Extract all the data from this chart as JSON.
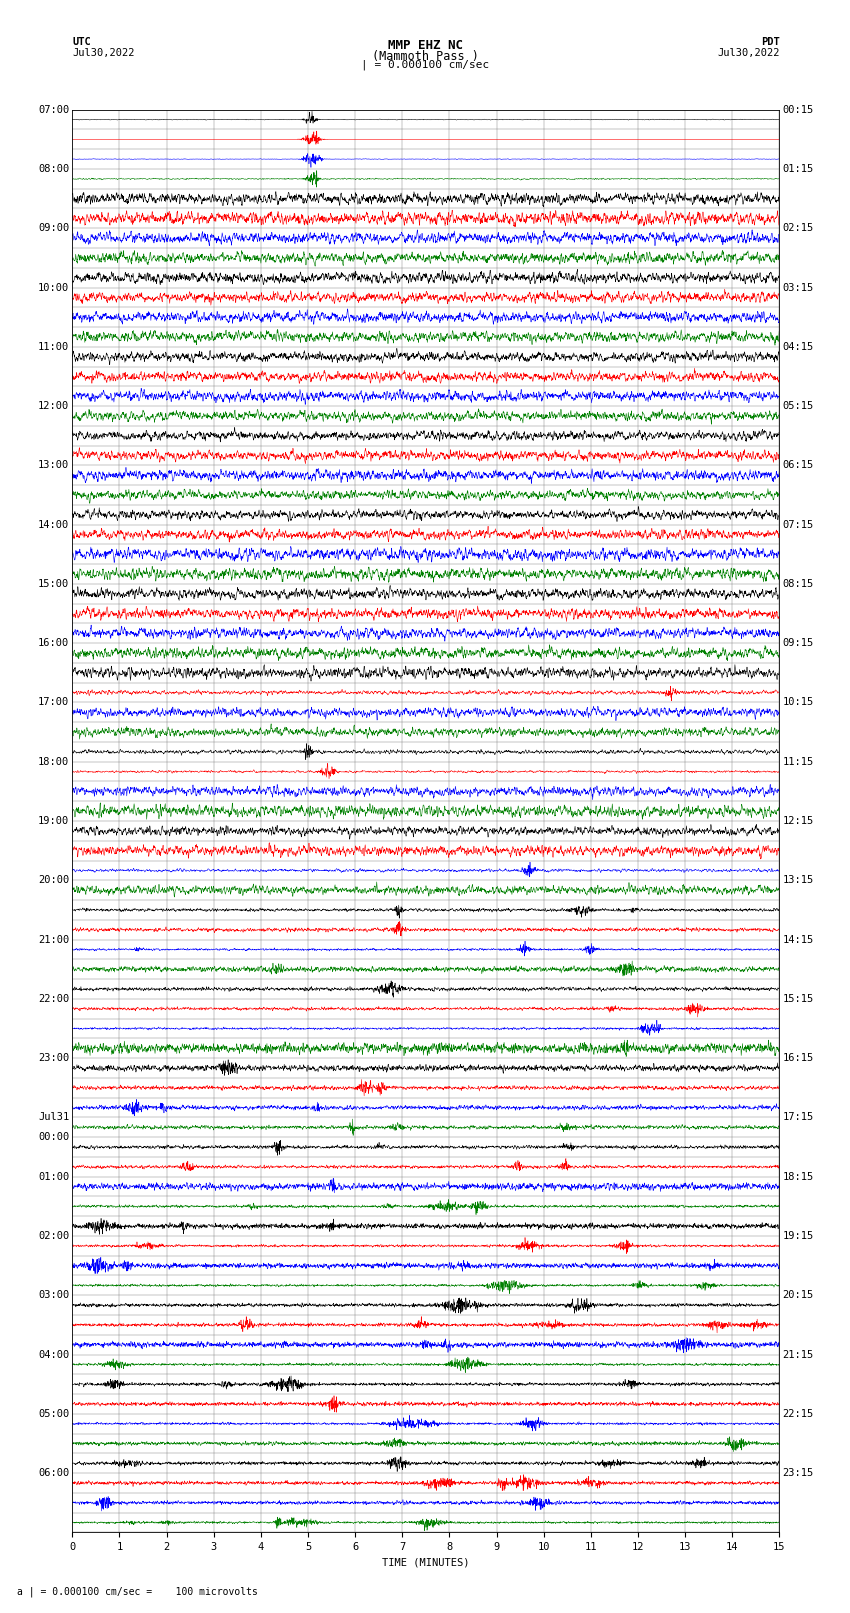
{
  "title_line1": "MMP EHZ NC",
  "title_line2": "(Mammoth Pass )",
  "title_line3": "| = 0.000100 cm/sec",
  "utc_label": "UTC",
  "utc_date": "Jul30,2022",
  "pdt_label": "PDT",
  "pdt_date": "Jul30,2022",
  "xlabel": "TIME (MINUTES)",
  "footer": "a | = 0.000100 cm/sec =    100 microvolts",
  "left_times": [
    "07:00",
    "",
    "",
    "08:00",
    "",
    "",
    "09:00",
    "",
    "",
    "10:00",
    "",
    "",
    "11:00",
    "",
    "",
    "12:00",
    "",
    "",
    "13:00",
    "",
    "",
    "14:00",
    "",
    "",
    "15:00",
    "",
    "",
    "16:00",
    "",
    "",
    "17:00",
    "",
    "",
    "18:00",
    "",
    "",
    "19:00",
    "",
    "",
    "20:00",
    "",
    "",
    "21:00",
    "",
    "",
    "22:00",
    "",
    "",
    "23:00",
    "",
    "",
    "Jul31",
    "00:00",
    "",
    "01:00",
    "",
    "",
    "02:00",
    "",
    "",
    "03:00",
    "",
    "",
    "04:00",
    "",
    "",
    "05:00",
    "",
    "",
    "06:00",
    "",
    ""
  ],
  "right_times": [
    "00:15",
    "",
    "",
    "01:15",
    "",
    "",
    "02:15",
    "",
    "",
    "03:15",
    "",
    "",
    "04:15",
    "",
    "",
    "05:15",
    "",
    "",
    "06:15",
    "",
    "",
    "07:15",
    "",
    "",
    "08:15",
    "",
    "",
    "09:15",
    "",
    "",
    "10:15",
    "",
    "",
    "11:15",
    "",
    "",
    "12:15",
    "",
    "",
    "13:15",
    "",
    "",
    "14:15",
    "",
    "",
    "15:15",
    "",
    "",
    "16:15",
    "",
    "",
    "17:15",
    "",
    "",
    "18:15",
    "",
    "",
    "19:15",
    "",
    "",
    "20:15",
    "",
    "",
    "21:15",
    "",
    "",
    "22:15",
    "",
    "",
    "23:15",
    "",
    ""
  ],
  "xticks": [
    0,
    1,
    2,
    3,
    4,
    5,
    6,
    7,
    8,
    9,
    10,
    11,
    12,
    13,
    14,
    15
  ],
  "xlim": [
    0,
    15
  ],
  "n_rows": 72,
  "bg_color": "#ffffff",
  "grid_color": "#777777",
  "trace_colors_cycle": [
    "black",
    "red",
    "blue",
    "green"
  ],
  "trace_linewidth": 0.4,
  "title_fontsize": 9,
  "label_fontsize": 7.5,
  "tick_fontsize": 7.5
}
